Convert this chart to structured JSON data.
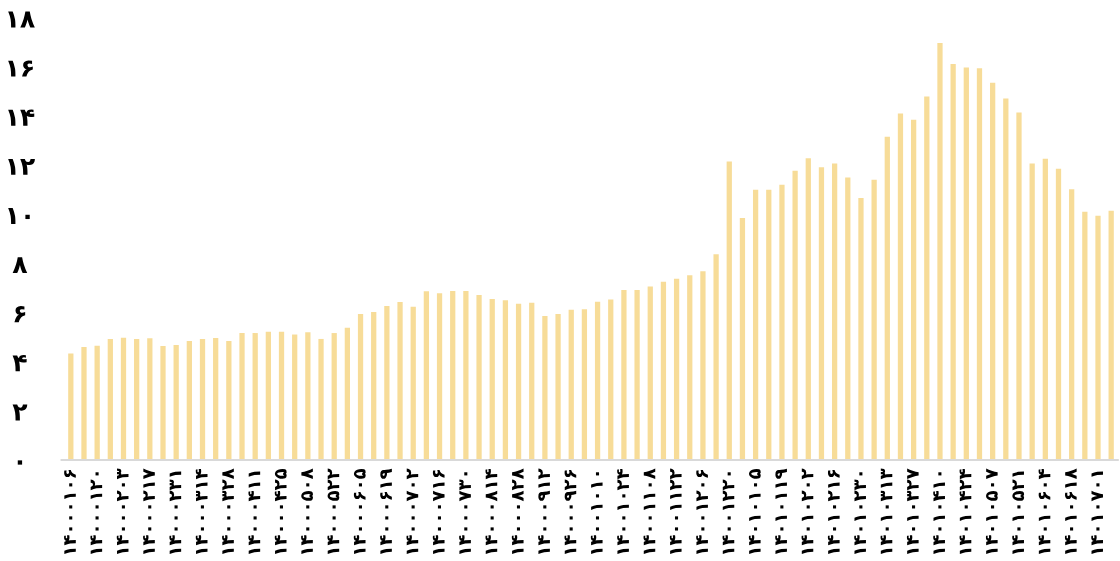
{
  "chart_data": {
    "type": "bar",
    "categories": [
      "۱۴۰۰۰۱۰۶",
      null,
      "۱۴۰۰۰۱۲۰",
      null,
      "۱۴۰۰۰۲۰۳",
      null,
      "۱۴۰۰۰۲۱۷",
      null,
      "۱۴۰۰۰۲۳۱",
      null,
      "۱۴۰۰۰۳۱۴",
      null,
      "۱۴۰۰۰۳۲۸",
      null,
      "۱۴۰۰۰۴۱۱",
      null,
      "۱۴۰۰۰۴۲۵",
      null,
      "۱۴۰۰۰۵۰۸",
      null,
      "۱۴۰۰۰۵۲۲",
      null,
      "۱۴۰۰۰۶۰۵",
      null,
      "۱۴۰۰۰۶۱۹",
      null,
      "۱۴۰۰۰۷۰۲",
      null,
      "۱۴۰۰۰۷۱۶",
      null,
      "۱۴۰۰۰۷۳۰",
      null,
      "۱۴۰۰۰۸۱۴",
      null,
      "۱۴۰۰۰۸۲۸",
      null,
      "۱۴۰۰۰۹۱۲",
      null,
      "۱۴۰۰۰۹۲۶",
      null,
      "۱۴۰۰۱۰۱۰",
      null,
      "۱۴۰۰۱۰۲۴",
      null,
      "۱۴۰۰۱۱۰۸",
      null,
      "۱۴۰۰۱۱۲۲",
      null,
      "۱۴۰۰۱۲۰۶",
      null,
      "۱۴۰۰۱۲۲۰",
      null,
      "۱۴۰۱۰۱۰۵",
      null,
      "۱۴۰۱۰۱۱۹",
      null,
      "۱۴۰۱۰۲۰۲",
      null,
      "۱۴۰۱۰۲۱۶",
      null,
      "۱۴۰۱۰۲۳۰",
      null,
      "۱۴۰۱۰۳۱۳",
      null,
      "۱۴۰۱۰۳۲۷",
      null,
      "۱۴۰۱۰۴۱۰",
      null,
      "۱۴۰۱۰۴۲۴",
      null,
      "۱۴۰۱۰۵۰۷",
      null,
      "۱۴۰۱۰۵۲۱",
      null,
      "۱۴۰۱۰۶۰۴",
      null,
      "۱۴۰۱۰۶۱۸",
      null,
      "۱۴۰۱۰۷۰۱",
      null
    ],
    "values": [
      4.34,
      4.6,
      4.65,
      4.93,
      4.98,
      4.93,
      4.96,
      4.64,
      4.68,
      4.85,
      4.93,
      4.97,
      4.85,
      5.17,
      5.17,
      5.22,
      5.22,
      5.11,
      5.2,
      4.93,
      5.17,
      5.39,
      5.95,
      6.03,
      6.27,
      6.43,
      6.24,
      6.87,
      6.79,
      6.88,
      6.88,
      6.72,
      6.56,
      6.51,
      6.36,
      6.4,
      5.86,
      5.95,
      6.12,
      6.14,
      6.44,
      6.54,
      6.92,
      6.92,
      7.07,
      7.26,
      7.38,
      7.52,
      7.69,
      8.38,
      12.16,
      9.85,
      11.0,
      11.0,
      11.21,
      11.78,
      12.29,
      11.92,
      12.07,
      11.5,
      10.67,
      11.41,
      13.16,
      14.11,
      13.86,
      14.8,
      16.98,
      16.12,
      15.98,
      15.95,
      15.36,
      14.72,
      14.15,
      12.07,
      12.27,
      11.86,
      11.03,
      10.11,
      9.95,
      10.15
    ],
    "color": "#f7dc98",
    "ylim": [
      0,
      18
    ],
    "yticks": [
      {
        "value": 0,
        "label": "۰"
      },
      {
        "value": 2,
        "label": "۲"
      },
      {
        "value": 4,
        "label": "۴"
      },
      {
        "value": 6,
        "label": "۶"
      },
      {
        "value": 8,
        "label": "۸"
      },
      {
        "value": 10,
        "label": "۱۰"
      },
      {
        "value": 12,
        "label": "۱۲"
      },
      {
        "value": 14,
        "label": "۱۴"
      },
      {
        "value": 16,
        "label": "۱۶"
      },
      {
        "value": 18,
        "label": "۱۸"
      }
    ],
    "grid": false,
    "legend": false
  }
}
